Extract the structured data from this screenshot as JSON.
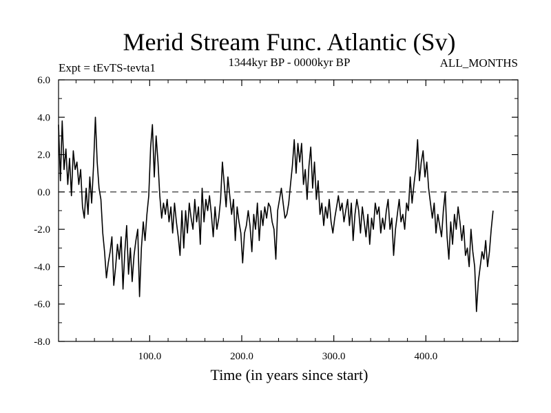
{
  "chart_data": {
    "type": "line",
    "title": "Merid Stream Func. Atlantic (Sv)",
    "experiment_label": "Expt = tEvTS-tevta1",
    "period_label": "1344kyr BP - 0000kyr BP",
    "months_label": "ALL_MONTHS",
    "xlabel": "Time (in years since start)",
    "ylabel": "",
    "xlim": [
      1,
      500
    ],
    "ylim": [
      -8.0,
      6.0
    ],
    "x_ticks": [
      100,
      200,
      300,
      400
    ],
    "x_tick_labels": [
      "100.0",
      "200.0",
      "300.0",
      "400.0"
    ],
    "y_ticks": [
      -8,
      -6,
      -4,
      -2,
      0,
      2,
      4,
      6
    ],
    "y_tick_labels": [
      "-8.0",
      "-6.0",
      "-4.0",
      "-2.0",
      "0.0",
      "2.0",
      "4.0",
      "6.0"
    ],
    "reference_line": {
      "y": 0.0,
      "style": "dashed"
    },
    "line_color": "#000000",
    "series": [
      {
        "name": "Merid Stream Func. Atlantic",
        "x_start": 1,
        "x_step": 2,
        "values": [
          3.6,
          0.6,
          3.8,
          1.2,
          2.3,
          0.4,
          1.8,
          -0.2,
          2.2,
          1.2,
          1.6,
          0.4,
          1.2,
          -0.8,
          -1.4,
          0.2,
          -1.2,
          0.8,
          -0.6,
          1.4,
          4.0,
          1.6,
          0.2,
          -0.4,
          -2.2,
          -3.2,
          -4.6,
          -3.8,
          -3.2,
          -2.4,
          -5.0,
          -4.0,
          -2.8,
          -3.6,
          -2.4,
          -5.2,
          -3.2,
          -1.8,
          -4.4,
          -3.0,
          -4.8,
          -3.4,
          -2.6,
          -2.0,
          -5.6,
          -3.0,
          -1.6,
          -2.6,
          -1.2,
          -0.2,
          2.4,
          3.6,
          0.8,
          3.0,
          1.6,
          -0.2,
          -1.4,
          -0.6,
          -1.2,
          -0.4,
          -1.6,
          -0.8,
          -2.2,
          -0.6,
          -1.6,
          -2.4,
          -3.4,
          -1.0,
          -3.0,
          -1.0,
          -2.2,
          -0.6,
          -1.4,
          -2.0,
          -0.4,
          -1.6,
          -0.8,
          -2.8,
          0.2,
          -1.6,
          -0.4,
          -1.0,
          -0.2,
          -1.2,
          -2.4,
          -0.8,
          -2.0,
          -1.4,
          -0.4,
          1.6,
          0.4,
          -0.8,
          0.8,
          -0.2,
          -1.2,
          -0.4,
          -2.6,
          -0.8,
          -1.6,
          -2.2,
          -3.8,
          -2.2,
          -1.8,
          -1.0,
          -1.8,
          -3.2,
          -1.2,
          -2.0,
          -0.6,
          -2.6,
          -1.0,
          -1.8,
          -0.8,
          -1.4,
          -0.6,
          -0.8,
          -1.6,
          -2.0,
          -3.6,
          -1.0,
          -0.4,
          0.2,
          -0.6,
          -1.4,
          -1.2,
          -0.6,
          0.4,
          1.4,
          2.8,
          1.0,
          2.6,
          1.6,
          2.6,
          0.4,
          1.2,
          -0.4,
          1.4,
          2.4,
          0.2,
          1.6,
          -0.4,
          0.6,
          -1.2,
          -0.6,
          -1.8,
          -0.8,
          -1.4,
          -0.4,
          -1.6,
          -2.2,
          -1.4,
          -0.8,
          -0.2,
          -1.0,
          -0.6,
          -1.6,
          -1.0,
          -0.4,
          -1.8,
          -0.6,
          -2.6,
          -1.2,
          -0.4,
          -1.0,
          -2.2,
          -0.8,
          -1.6,
          -2.4,
          -1.2,
          -2.8,
          -1.4,
          -2.0,
          -0.6,
          -1.2,
          -0.8,
          -2.2,
          -1.4,
          -2.0,
          -1.0,
          -0.4,
          -2.0,
          -1.4,
          -3.4,
          -2.0,
          -1.2,
          -0.4,
          -1.6,
          -1.2,
          -2.0,
          -0.6,
          -1.0,
          0.8,
          -0.6,
          0.4,
          1.2,
          2.8,
          0.6,
          1.6,
          2.2,
          0.8,
          1.6,
          0.2,
          -0.6,
          -1.4,
          -0.6,
          -2.2,
          -1.2,
          -1.8,
          -2.4,
          -1.0,
          0.0,
          -2.4,
          -3.6,
          -1.6,
          -2.8,
          -1.2,
          -2.0,
          -0.8,
          -1.6,
          -2.6,
          -1.8,
          -3.4,
          -3.0,
          -4.0,
          -2.0,
          -3.2,
          -4.0,
          -6.4,
          -4.8,
          -4.0,
          -3.2,
          -3.6,
          -2.6,
          -4.0,
          -3.2,
          -2.0,
          -1.0
        ]
      }
    ]
  }
}
